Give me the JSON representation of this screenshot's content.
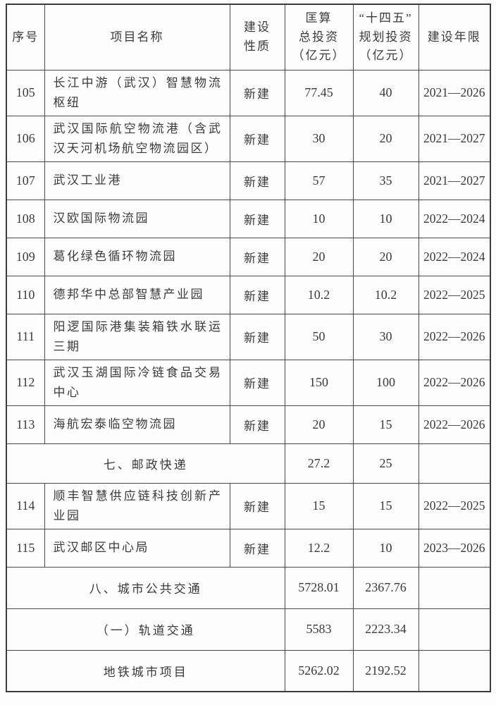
{
  "table": {
    "headers": {
      "no": "序号",
      "name": "项目名称",
      "nature": "建设\n性质",
      "total": "匡算\n总投资\n（亿元）",
      "plan": "“十四五”\n规划投资\n（亿元）",
      "years": "建设年限"
    },
    "rows": [
      {
        "type": "project",
        "no": "105",
        "name": "长江中游（武汉）智慧物流枢纽",
        "nature": "新建",
        "total": "77.45",
        "plan": "40",
        "years": "2021—2026"
      },
      {
        "type": "project",
        "no": "106",
        "name": "武汉国际航空物流港（含武汉天河机场航空物流园区）",
        "nature": "新建",
        "total": "30",
        "plan": "20",
        "years": "2021—2027"
      },
      {
        "type": "project",
        "no": "107",
        "name": "武汉工业港",
        "nature": "新建",
        "total": "57",
        "plan": "35",
        "years": "2021—2027"
      },
      {
        "type": "project",
        "no": "108",
        "name": "汉欧国际物流园",
        "nature": "新建",
        "total": "10",
        "plan": "10",
        "years": "2022—2024"
      },
      {
        "type": "project",
        "no": "109",
        "name": "葛化绿色循环物流园",
        "nature": "新建",
        "total": "20",
        "plan": "20",
        "years": "2022—2024"
      },
      {
        "type": "project",
        "no": "110",
        "name": "德邦华中总部智慧产业园",
        "nature": "新建",
        "total": "10.2",
        "plan": "10.2",
        "years": "2022—2025"
      },
      {
        "type": "project",
        "no": "111",
        "name": "阳逻国际港集装箱铁水联运三期",
        "nature": "新建",
        "total": "50",
        "plan": "30",
        "years": "2022—2026"
      },
      {
        "type": "project",
        "no": "112",
        "name": "武汉玉湖国际冷链食品交易中心",
        "nature": "新建",
        "total": "150",
        "plan": "100",
        "years": "2022—2026"
      },
      {
        "type": "project",
        "no": "113",
        "name": "海航宏泰临空物流园",
        "nature": "新建",
        "total": "20",
        "plan": "15",
        "years": "2022—2026"
      },
      {
        "type": "section",
        "title": "七、邮政快递",
        "total": "27.2",
        "plan": "25",
        "years": ""
      },
      {
        "type": "project",
        "no": "114",
        "name": "顺丰智慧供应链科技创新产业园",
        "nature": "新建",
        "total": "15",
        "plan": "15",
        "years": "2022—2025"
      },
      {
        "type": "project",
        "no": "115",
        "name": "武汉邮区中心局",
        "nature": "新建",
        "total": "12.2",
        "plan": "10",
        "years": "2023—2026"
      },
      {
        "type": "section",
        "title": "八、城市公共交通",
        "total": "5728.01",
        "plan": "2367.76",
        "years": ""
      },
      {
        "type": "section",
        "title": "（一）轨道交通",
        "total": "5583",
        "plan": "2223.34",
        "years": ""
      },
      {
        "type": "section",
        "title": "地铁城市项目",
        "total": "5262.02",
        "plan": "2192.52",
        "years": ""
      }
    ]
  }
}
